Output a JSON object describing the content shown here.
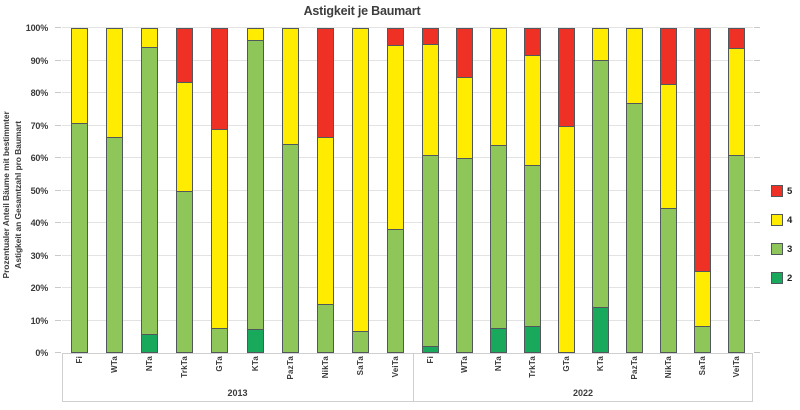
{
  "title": "Astigkeit je Baumart",
  "y_axis": {
    "label_line1": "Prozentualer Anteil Bäume mit bestimmter",
    "label_line2": "Astigkeit an Gesamtzahl pro Baumart",
    "ticks": [
      "0%",
      "10%",
      "20%",
      "30%",
      "40%",
      "50%",
      "60%",
      "70%",
      "80%",
      "90%",
      "100%"
    ]
  },
  "legend": [
    {
      "label": "5",
      "color": "#ee3124"
    },
    {
      "label": "4",
      "color": "#ffec00"
    },
    {
      "label": "3",
      "color": "#8ec659"
    },
    {
      "label": "2",
      "color": "#19a95c"
    }
  ],
  "chart_data": {
    "type": "bar",
    "stacked": true,
    "unit": "percent",
    "ylim": [
      0,
      100
    ],
    "grid": true,
    "legend_position": "right",
    "segment_order": [
      "2",
      "3",
      "4",
      "5"
    ],
    "colors": {
      "2": "#19a95c",
      "3": "#8ec659",
      "4": "#ffec00",
      "5": "#ee3124"
    },
    "groups": [
      {
        "year": "2013",
        "categories": [
          "Fi",
          "WTa",
          "NTa",
          "TrkTa",
          "GTa",
          "KTa",
          "PazTa",
          "NikTa",
          "SaTa",
          "VeiTa"
        ],
        "series": [
          {
            "name": "2",
            "values": [
              0,
              0,
              5.5,
              0,
              0,
              7,
              0,
              0,
              0,
              0
            ]
          },
          {
            "name": "3",
            "values": [
              71,
              66.5,
              89,
              50,
              7.5,
              89.5,
              64.5,
              15,
              6.5,
              38
            ]
          },
          {
            "name": "4",
            "values": [
              29,
              33.5,
              5.5,
              33.5,
              61.5,
              3.5,
              35.5,
              51.5,
              93.5,
              57
            ]
          },
          {
            "name": "5",
            "values": [
              0,
              0,
              0,
              16.5,
              31,
              0,
              0,
              33.5,
              0,
              5
            ]
          }
        ]
      },
      {
        "year": "2022",
        "categories": [
          "Fi",
          "WTa",
          "NTa",
          "TrkTa",
          "GTa",
          "KTa",
          "PazTa",
          "NikTa",
          "SaTa",
          "VeiTa"
        ],
        "series": [
          {
            "name": "2",
            "values": [
              2,
              0,
              7.5,
              8,
              0,
              14,
              0,
              0,
              0,
              0
            ]
          },
          {
            "name": "3",
            "values": [
              59,
              60,
              56.5,
              50,
              0,
              76.5,
              77,
              44.5,
              8,
              61
            ]
          },
          {
            "name": "4",
            "values": [
              34.5,
              25,
              36,
              34,
              70,
              9.5,
              23,
              38.5,
              17,
              33
            ]
          },
          {
            "name": "5",
            "values": [
              4.5,
              15,
              0,
              8,
              30,
              0,
              0,
              17,
              75,
              6
            ]
          }
        ]
      }
    ]
  }
}
